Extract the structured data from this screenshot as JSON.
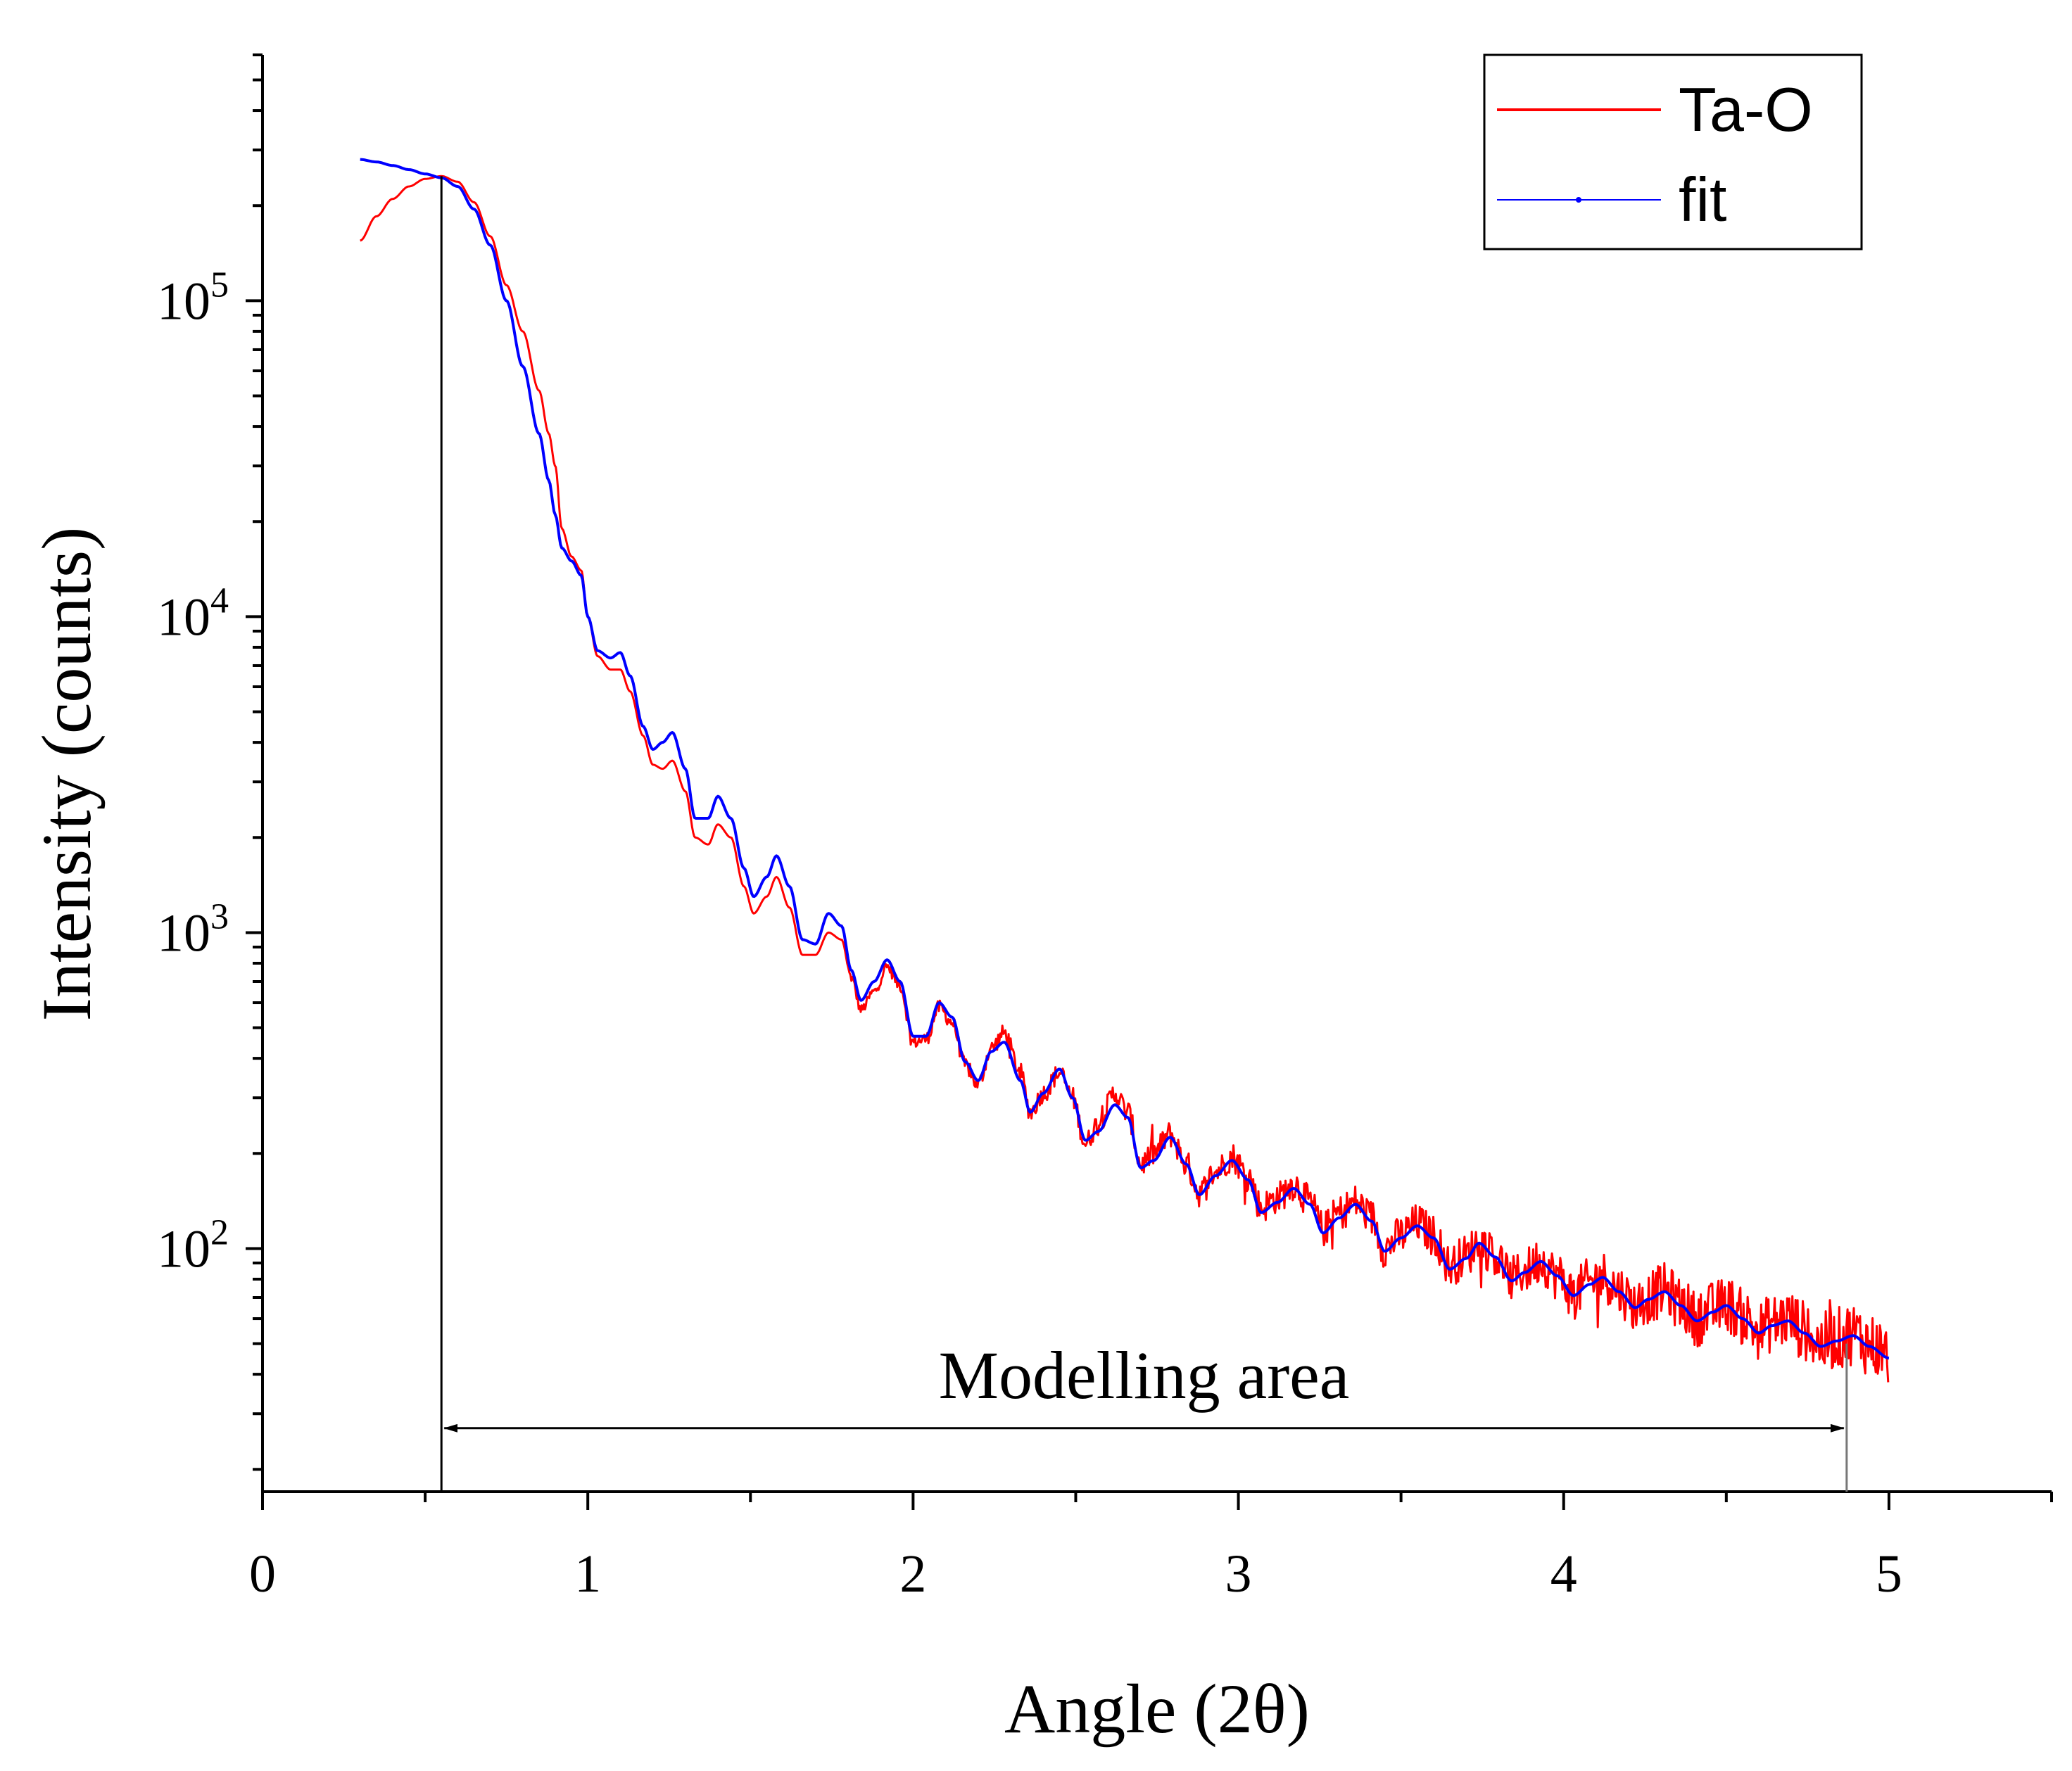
{
  "chart_data": {
    "type": "line",
    "title": "",
    "xlabel": "Angle (2θ)",
    "ylabel": "Intensity (counts)",
    "xlim": [
      0,
      5.5
    ],
    "ylim": [
      17,
      600000
    ],
    "y_scale": "log",
    "grid": false,
    "legend_position": "top-right",
    "x_ticks": [
      {
        "value": 0,
        "label": "0"
      },
      {
        "value": 1,
        "label": "1"
      },
      {
        "value": 2,
        "label": "2"
      },
      {
        "value": 3,
        "label": "3"
      },
      {
        "value": 4,
        "label": "4"
      },
      {
        "value": 5,
        "label": "5"
      }
    ],
    "y_ticks": [
      {
        "value": 100,
        "base": "10",
        "exp": "2"
      },
      {
        "value": 1000,
        "base": "10",
        "exp": "3"
      },
      {
        "value": 10000,
        "base": "10",
        "exp": "4"
      },
      {
        "value": 100000,
        "base": "10",
        "exp": "5"
      }
    ],
    "series": [
      {
        "name": "Ta-O",
        "color": "#ff0000",
        "style": "noisy",
        "points": [
          [
            0.3,
            155000
          ],
          [
            0.35,
            185000
          ],
          [
            0.4,
            210000
          ],
          [
            0.45,
            230000
          ],
          [
            0.5,
            243000
          ],
          [
            0.55,
            248000
          ],
          [
            0.6,
            238000
          ],
          [
            0.65,
            205000
          ],
          [
            0.7,
            160000
          ],
          [
            0.75,
            112000
          ],
          [
            0.8,
            80000
          ],
          [
            0.85,
            52000
          ],
          [
            0.88,
            38000
          ],
          [
            0.9,
            30000
          ],
          [
            0.92,
            19000
          ],
          [
            0.95,
            15500
          ],
          [
            0.98,
            14000
          ],
          [
            1.0,
            10000
          ],
          [
            1.03,
            7500
          ],
          [
            1.07,
            6800
          ],
          [
            1.1,
            6800
          ],
          [
            1.13,
            5800
          ],
          [
            1.17,
            4200
          ],
          [
            1.2,
            3400
          ],
          [
            1.23,
            3300
          ],
          [
            1.26,
            3500
          ],
          [
            1.3,
            2800
          ],
          [
            1.33,
            2000
          ],
          [
            1.37,
            1900
          ],
          [
            1.4,
            2200
          ],
          [
            1.44,
            2000
          ],
          [
            1.48,
            1400
          ],
          [
            1.51,
            1150
          ],
          [
            1.55,
            1300
          ],
          [
            1.58,
            1500
          ],
          [
            1.62,
            1200
          ],
          [
            1.66,
            850
          ],
          [
            1.7,
            850
          ],
          [
            1.74,
            1000
          ],
          [
            1.78,
            950
          ],
          [
            1.81,
            720
          ],
          [
            1.84,
            570
          ],
          [
            1.88,
            650
          ],
          [
            1.92,
            780
          ],
          [
            1.96,
            680
          ],
          [
            2.0,
            450
          ],
          [
            2.04,
            460
          ],
          [
            2.08,
            580
          ],
          [
            2.12,
            520
          ],
          [
            2.16,
            380
          ],
          [
            2.2,
            330
          ],
          [
            2.24,
            430
          ],
          [
            2.28,
            480
          ],
          [
            2.33,
            360
          ],
          [
            2.36,
            270
          ],
          [
            2.4,
            310
          ],
          [
            2.45,
            360
          ],
          [
            2.49,
            300
          ],
          [
            2.53,
            215
          ],
          [
            2.57,
            250
          ],
          [
            2.62,
            310
          ],
          [
            2.66,
            270
          ],
          [
            2.7,
            185
          ],
          [
            2.74,
            200
          ],
          [
            2.79,
            230
          ],
          [
            2.84,
            185
          ],
          [
            2.88,
            150
          ],
          [
            2.93,
            175
          ],
          [
            2.98,
            195
          ],
          [
            3.03,
            170
          ],
          [
            3.07,
            135
          ],
          [
            3.12,
            145
          ],
          [
            3.17,
            160
          ],
          [
            3.22,
            140
          ],
          [
            3.26,
            115
          ],
          [
            3.31,
            130
          ],
          [
            3.36,
            140
          ],
          [
            3.41,
            125
          ],
          [
            3.45,
            100
          ],
          [
            3.5,
            110
          ],
          [
            3.55,
            120
          ],
          [
            3.6,
            110
          ],
          [
            3.65,
            88
          ],
          [
            3.7,
            95
          ],
          [
            3.74,
            105
          ],
          [
            3.79,
            95
          ],
          [
            3.84,
            80
          ],
          [
            3.88,
            85
          ],
          [
            3.93,
            92
          ],
          [
            3.98,
            82
          ],
          [
            4.03,
            72
          ],
          [
            4.08,
            78
          ],
          [
            4.12,
            82
          ],
          [
            4.17,
            74
          ],
          [
            4.22,
            66
          ],
          [
            4.26,
            70
          ],
          [
            4.31,
            74
          ],
          [
            4.36,
            67
          ],
          [
            4.41,
            60
          ],
          [
            4.46,
            64
          ],
          [
            4.5,
            67
          ],
          [
            4.55,
            61
          ],
          [
            4.6,
            55
          ],
          [
            4.64,
            58
          ],
          [
            4.69,
            60
          ],
          [
            4.74,
            55
          ],
          [
            4.79,
            50
          ],
          [
            4.84,
            52
          ],
          [
            4.89,
            54
          ],
          [
            4.94,
            50
          ],
          [
            5.0,
            46
          ]
        ]
      },
      {
        "name": "fit",
        "color": "#0000ff",
        "style": "smooth",
        "points": [
          [
            0.3,
            280000
          ],
          [
            0.35,
            275000
          ],
          [
            0.4,
            268000
          ],
          [
            0.45,
            260000
          ],
          [
            0.5,
            252000
          ],
          [
            0.55,
            245000
          ],
          [
            0.6,
            230000
          ],
          [
            0.65,
            195000
          ],
          [
            0.7,
            150000
          ],
          [
            0.75,
            100000
          ],
          [
            0.8,
            62000
          ],
          [
            0.85,
            38000
          ],
          [
            0.88,
            27000
          ],
          [
            0.9,
            21000
          ],
          [
            0.92,
            16500
          ],
          [
            0.95,
            15000
          ],
          [
            0.98,
            13500
          ],
          [
            1.0,
            10000
          ],
          [
            1.03,
            7800
          ],
          [
            1.07,
            7400
          ],
          [
            1.1,
            7700
          ],
          [
            1.13,
            6500
          ],
          [
            1.17,
            4500
          ],
          [
            1.2,
            3800
          ],
          [
            1.23,
            4000
          ],
          [
            1.26,
            4300
          ],
          [
            1.3,
            3300
          ],
          [
            1.33,
            2300
          ],
          [
            1.37,
            2300
          ],
          [
            1.4,
            2700
          ],
          [
            1.44,
            2300
          ],
          [
            1.48,
            1600
          ],
          [
            1.51,
            1300
          ],
          [
            1.55,
            1500
          ],
          [
            1.58,
            1750
          ],
          [
            1.62,
            1400
          ],
          [
            1.66,
            950
          ],
          [
            1.7,
            920
          ],
          [
            1.74,
            1150
          ],
          [
            1.78,
            1050
          ],
          [
            1.81,
            760
          ],
          [
            1.84,
            610
          ],
          [
            1.88,
            700
          ],
          [
            1.92,
            820
          ],
          [
            1.96,
            700
          ],
          [
            2.0,
            470
          ],
          [
            2.04,
            470
          ],
          [
            2.08,
            600
          ],
          [
            2.12,
            540
          ],
          [
            2.16,
            390
          ],
          [
            2.2,
            340
          ],
          [
            2.24,
            420
          ],
          [
            2.28,
            450
          ],
          [
            2.33,
            340
          ],
          [
            2.36,
            270
          ],
          [
            2.4,
            310
          ],
          [
            2.45,
            370
          ],
          [
            2.49,
            300
          ],
          [
            2.53,
            220
          ],
          [
            2.57,
            235
          ],
          [
            2.62,
            285
          ],
          [
            2.66,
            260
          ],
          [
            2.7,
            180
          ],
          [
            2.74,
            190
          ],
          [
            2.79,
            225
          ],
          [
            2.84,
            185
          ],
          [
            2.88,
            148
          ],
          [
            2.93,
            170
          ],
          [
            2.98,
            190
          ],
          [
            3.03,
            165
          ],
          [
            3.07,
            130
          ],
          [
            3.12,
            140
          ],
          [
            3.17,
            155
          ],
          [
            3.22,
            138
          ],
          [
            3.26,
            112
          ],
          [
            3.31,
            125
          ],
          [
            3.36,
            138
          ],
          [
            3.41,
            122
          ],
          [
            3.45,
            98
          ],
          [
            3.5,
            108
          ],
          [
            3.55,
            118
          ],
          [
            3.6,
            108
          ],
          [
            3.65,
            86
          ],
          [
            3.7,
            93
          ],
          [
            3.74,
            104
          ],
          [
            3.79,
            94
          ],
          [
            3.84,
            79
          ],
          [
            3.88,
            84
          ],
          [
            3.93,
            91
          ],
          [
            3.98,
            82
          ],
          [
            4.03,
            71
          ],
          [
            4.08,
            77
          ],
          [
            4.12,
            81
          ],
          [
            4.17,
            73
          ],
          [
            4.22,
            65
          ],
          [
            4.26,
            69
          ],
          [
            4.31,
            73
          ],
          [
            4.36,
            66
          ],
          [
            4.41,
            59
          ],
          [
            4.46,
            63
          ],
          [
            4.5,
            66
          ],
          [
            4.55,
            60
          ],
          [
            4.6,
            54
          ],
          [
            4.64,
            57
          ],
          [
            4.69,
            59
          ],
          [
            4.74,
            54
          ],
          [
            4.79,
            49
          ],
          [
            4.84,
            51
          ],
          [
            4.89,
            53
          ],
          [
            4.94,
            49
          ],
          [
            5.0,
            45
          ]
        ]
      }
    ],
    "annotations": {
      "modelling_area": {
        "label": "Modelling area",
        "x_start": 0.55,
        "x_end": 4.87,
        "y_arrow": 27,
        "y_label": 40
      }
    }
  }
}
